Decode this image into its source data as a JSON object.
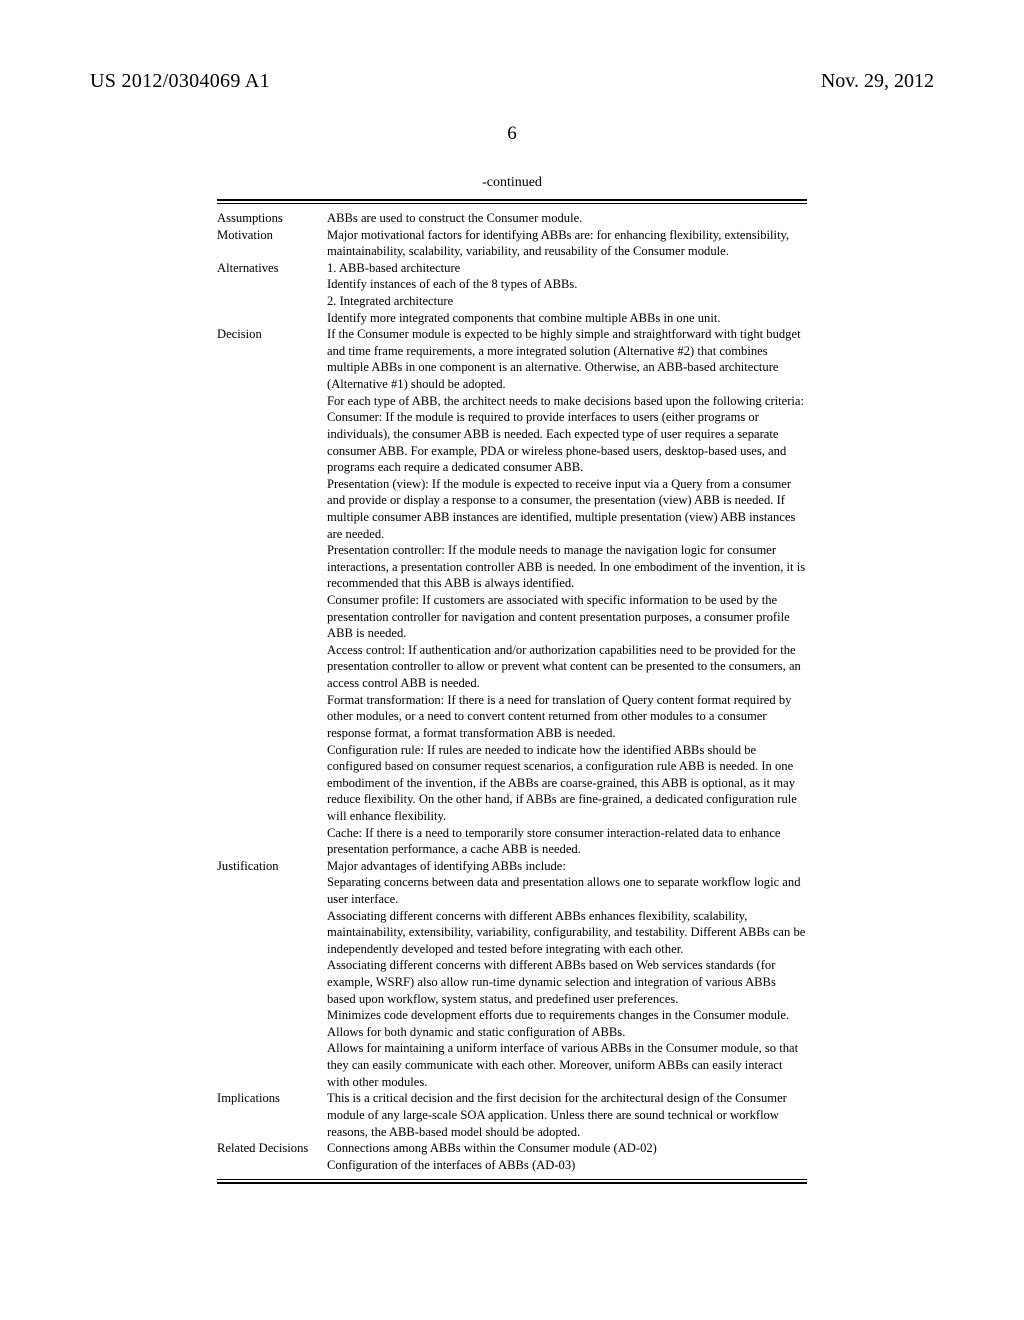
{
  "header": {
    "publication_number": "US 2012/0304069 A1",
    "publication_date": "Nov. 29, 2012"
  },
  "page_number": "6",
  "continued_label": "-continued",
  "rows": [
    {
      "label": "Assumptions",
      "content": "ABBs are used to construct the Consumer module."
    },
    {
      "label": "Motivation",
      "content": "Major motivational factors for identifying ABBs are: for enhancing flexibility, extensibility, maintainability, scalability, variability, and reusability of the Consumer module."
    },
    {
      "label": "Alternatives",
      "content": "1. ABB-based architecture\nIdentify instances of each of the 8 types of ABBs.\n2. Integrated architecture\nIdentify more integrated components that combine multiple ABBs in one unit."
    },
    {
      "label": "Decision",
      "content": "If the Consumer module is expected to be highly simple and straightforward with tight budget and time frame requirements, a more integrated solution (Alternative #2) that combines multiple ABBs in one component is an alternative. Otherwise, an ABB-based architecture (Alternative #1) should be adopted.\nFor each type of ABB, the architect needs to make decisions based upon the following criteria:\nConsumer: If the module is required to provide interfaces to users (either programs or individuals), the consumer ABB is needed. Each expected type of user requires a separate consumer ABB. For example, PDA or wireless phone-based users, desktop-based uses, and programs each require a dedicated consumer ABB.\nPresentation (view): If the module is expected to receive input via a Query from a consumer and provide or display a response to a consumer, the presentation (view) ABB is needed. If multiple consumer ABB instances are identified, multiple presentation (view) ABB instances are needed.\nPresentation controller: If the module needs to manage the navigation logic for consumer interactions, a presentation controller ABB is needed. In one embodiment of the invention, it is recommended that this ABB is always identified.\nConsumer profile: If customers are associated with specific information to be used by the presentation controller for navigation and content presentation purposes, a consumer profile ABB is needed.\nAccess control: If authentication and/or authorization capabilities need to be provided for the presentation controller to allow or prevent what content can be presented to the consumers, an access control ABB is needed.\nFormat transformation: If there is a need for translation of Query content format required by other modules, or a need to convert content returned from other modules to a consumer response format, a format transformation ABB is needed.\nConfiguration rule: If rules are needed to indicate how the identified ABBs should be configured based on consumer request scenarios, a configuration rule ABB is needed. In one embodiment of the invention, if the ABBs are coarse-grained, this ABB is optional, as it may reduce flexibility. On the other hand, if ABBs are fine-grained, a dedicated configuration rule will enhance flexibility.\nCache: If there is a need to temporarily store consumer interaction-related data to enhance presentation performance, a cache ABB is needed."
    },
    {
      "label": "Justification",
      "content": "Major advantages of identifying ABBs include:\nSeparating concerns between data and presentation allows one to separate workflow logic and user interface.\nAssociating different concerns with different ABBs enhances flexibility, scalability, maintainability, extensibility, variability, configurability, and testability. Different ABBs can be independently developed and tested before integrating with each other.\nAssociating different concerns with different ABBs based on Web services standards (for example, WSRF) also allow run-time dynamic selection and integration of various ABBs based upon workflow, system status, and predefined user preferences.\nMinimizes code development efforts due to requirements changes in the Consumer module.\nAllows for both dynamic and static configuration of ABBs.\nAllows for maintaining a uniform interface of various ABBs in the Consumer module, so that they can easily communicate with each other. Moreover, uniform ABBs can easily interact with other modules."
    },
    {
      "label": "Implications",
      "content": "This is a critical decision and the first decision for the architectural design of the Consumer module of any large-scale SOA application. Unless there are sound technical or workflow reasons, the ABB-based model should be adopted."
    },
    {
      "label": "Related Decisions",
      "content": "Connections among ABBs within the Consumer module (AD-02)\nConfiguration of the interfaces of ABBs (AD-03)"
    }
  ]
}
